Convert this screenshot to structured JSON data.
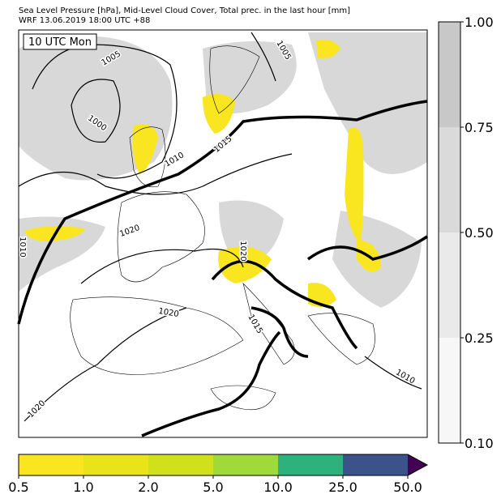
{
  "header": {
    "title": "Sea Level Pressure [hPa], Mid-Level Cloud Cover, Total prec. in the last hour [mm]",
    "subtitle": "WRF 13.06.2019 18:00 UTC +88"
  },
  "map": {
    "time_label": "10 UTC Mon",
    "contour_labels": [
      "1005",
      "1000",
      "1010",
      "1015",
      "1005",
      "1020",
      "1010",
      "1020",
      "1020",
      "1015",
      "1020",
      "1010"
    ]
  },
  "cloud_colorbar": {
    "ticks": [
      "1.00",
      "0.75",
      "0.50",
      "0.25",
      "0.10"
    ],
    "colors": [
      "#c8c8c8",
      "#dadada",
      "#eaeaea",
      "#f7f7f7"
    ]
  },
  "precip_colorbar": {
    "ticks": [
      "0.5",
      "1.0",
      "2.0",
      "5.0",
      "10.0",
      "25.0",
      "50.0"
    ],
    "colors": [
      "#f9e621",
      "#e8e419",
      "#d0e11c",
      "#a0da39",
      "#2db27d",
      "#3b528b",
      "#440154"
    ]
  }
}
